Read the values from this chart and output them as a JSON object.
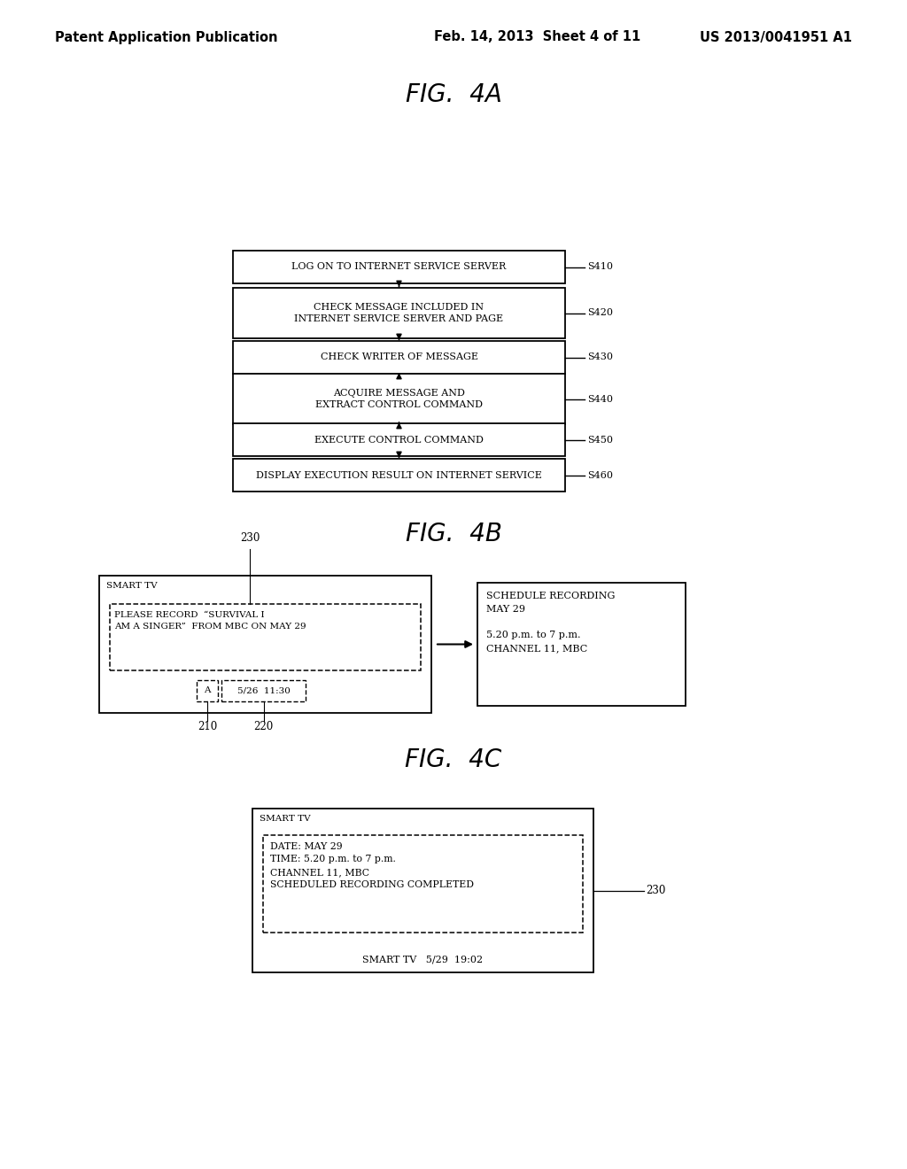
{
  "header_left": "Patent Application Publication",
  "header_mid": "Feb. 14, 2013  Sheet 4 of 11",
  "header_right": "US 2013/0041951 A1",
  "fig4a_title": "FIG.  4A",
  "fig4b_title": "FIG.  4B",
  "fig4c_title": "FIG.  4C",
  "flowchart_steps": [
    {
      "label": "LOG ON TO INTERNET SERVICE SERVER",
      "ref": "S410"
    },
    {
      "label": "CHECK MESSAGE INCLUDED IN\nINTERNET SERVICE SERVER AND PAGE",
      "ref": "S420"
    },
    {
      "label": "CHECK WRITER OF MESSAGE",
      "ref": "S430"
    },
    {
      "label": "ACQUIRE MESSAGE AND\nEXTRACT CONTROL COMMAND",
      "ref": "S440"
    },
    {
      "label": "EXECUTE CONTROL COMMAND",
      "ref": "S450"
    },
    {
      "label": "DISPLAY EXECUTION RESULT ON INTERNET SERVICE",
      "ref": "S460"
    }
  ],
  "bg_color": "#ffffff",
  "text_color": "#000000"
}
